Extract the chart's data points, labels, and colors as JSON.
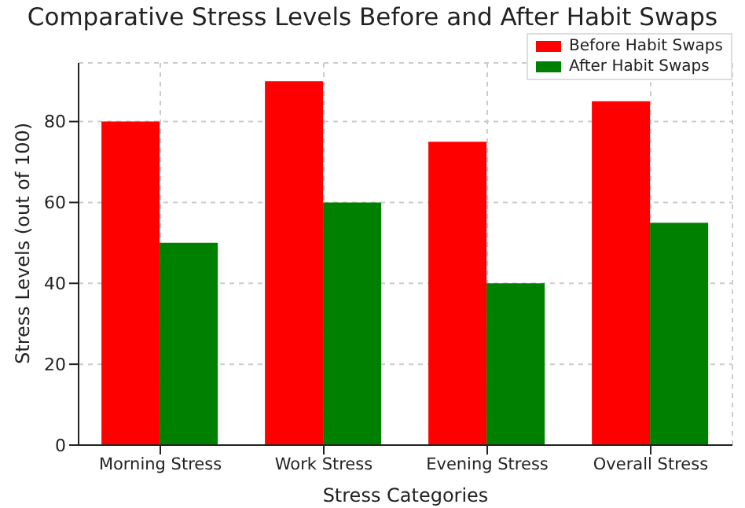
{
  "chart_data": {
    "type": "bar",
    "title": "Comparative Stress Levels Before and After Habit Swaps",
    "xlabel": "Stress Categories",
    "ylabel": "Stress Levels (out of 100)",
    "categories": [
      "Morning Stress",
      "Work Stress",
      "Evening Stress",
      "Overall Stress"
    ],
    "series": [
      {
        "name": "Before Habit Swaps",
        "color": "#ff0000",
        "values": [
          80,
          90,
          75,
          85
        ]
      },
      {
        "name": "After Habit Swaps",
        "color": "#008000",
        "values": [
          50,
          60,
          40,
          55
        ]
      }
    ],
    "ylim": [
      0,
      94.5
    ],
    "yticks": [
      0,
      20,
      40,
      60,
      80
    ],
    "grid": true,
    "legend": "top right"
  }
}
